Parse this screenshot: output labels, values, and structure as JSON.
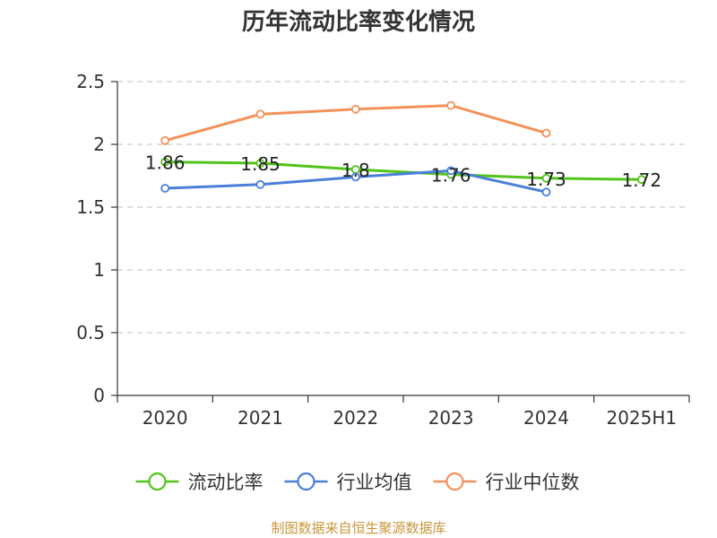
{
  "chart_data": {
    "type": "line",
    "title": "历年流动比率变化情况",
    "categories": [
      "2020",
      "2021",
      "2022",
      "2023",
      "2024",
      "2025H1"
    ],
    "ylim": [
      0,
      2.5
    ],
    "yticks": [
      "0",
      "0.5",
      "1",
      "1.5",
      "2",
      "2.5"
    ],
    "grid": true,
    "legend_position": "bottom",
    "series": [
      {
        "name": "流动比率",
        "color": "#52c41a",
        "values": [
          1.86,
          1.85,
          1.8,
          1.76,
          1.73,
          1.72
        ],
        "labels": [
          "1.86",
          "1.85",
          "1.8",
          "1.76",
          "1.73",
          "1.72"
        ]
      },
      {
        "name": "行业均值",
        "color": "#4a7fd9",
        "values": [
          1.65,
          1.68,
          1.74,
          1.79,
          1.62,
          null
        ]
      },
      {
        "name": "行业中位数",
        "color": "#f4915a",
        "values": [
          2.03,
          2.24,
          2.28,
          2.31,
          2.09,
          null
        ]
      }
    ]
  },
  "source_text": "制图数据来自恒生聚源数据库"
}
